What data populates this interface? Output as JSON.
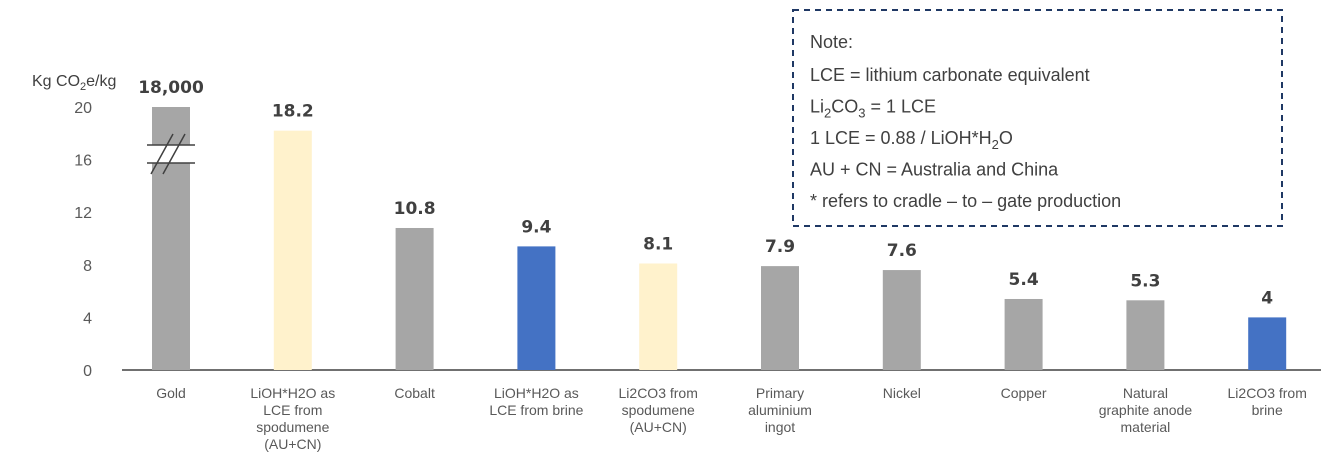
{
  "chart_data": {
    "type": "bar",
    "ylabel": {
      "base": "Kg CO",
      "sub": "2",
      "rest": "e/kg"
    },
    "ylim": [
      0,
      20
    ],
    "yticks": [
      "0",
      "4",
      "8",
      "12",
      "16",
      "20"
    ],
    "axis_break": true,
    "categories": [
      [
        "Gold"
      ],
      [
        "LiOH*H2O as",
        "LCE from",
        "spodumene",
        "(AU+CN)"
      ],
      [
        "Cobalt"
      ],
      [
        "LiOH*H2O as",
        "LCE from brine"
      ],
      [
        "Li2CO3 from",
        "spodumene",
        "(AU+CN)"
      ],
      [
        "Primary",
        "aluminium",
        "ingot"
      ],
      [
        "Nickel"
      ],
      [
        "Copper"
      ],
      [
        "Natural",
        "graphite anode",
        "material"
      ],
      [
        "Li2CO3 from",
        "brine"
      ]
    ],
    "values": [
      18000,
      18.2,
      10.8,
      9.4,
      8.1,
      7.9,
      7.6,
      5.4,
      5.3,
      4
    ],
    "data_labels": [
      "18,000",
      "18.2",
      "10.8",
      "9.4",
      "8.1",
      "7.9",
      "7.6",
      "5.4",
      "5.3",
      "4"
    ],
    "colors": [
      "#a6a6a6",
      "#fff2cc",
      "#a6a6a6",
      "#4472c4",
      "#fff2cc",
      "#a6a6a6",
      "#a6a6a6",
      "#a6a6a6",
      "#a6a6a6",
      "#4472c4"
    ],
    "grid": false,
    "note": {
      "title": "Note:",
      "lines": [
        [
          {
            "t": "LCE = lithium carbonate equivalent"
          }
        ],
        [
          {
            "t": "Li"
          },
          {
            "t": "2",
            "sub": true
          },
          {
            "t": "CO"
          },
          {
            "t": "3",
            "sub": true
          },
          {
            "t": " = 1 LCE"
          }
        ],
        [
          {
            "t": "1 LCE = 0.88 / LiOH*H"
          },
          {
            "t": "2",
            "sub": true
          },
          {
            "t": "O"
          }
        ],
        [
          {
            "t": "AU + CN = Australia and China"
          }
        ],
        [
          {
            "t": "* refers to cradle – to – gate production"
          }
        ]
      ]
    }
  }
}
